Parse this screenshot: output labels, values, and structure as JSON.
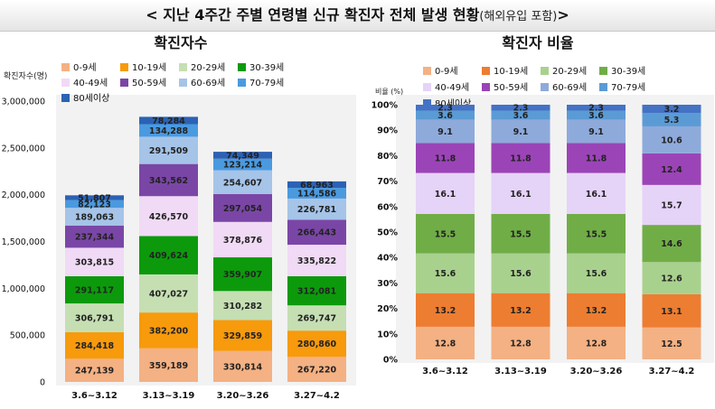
{
  "page": {
    "title": "< 지난 4주간 주별 연령별 신규 확진자 전체 발생 현황",
    "title_suffix": "(해외유입 포함)",
    "title_close": ">"
  },
  "legend_labels": [
    "0-9세",
    "10-19세",
    "20-29세",
    "30-39세",
    "40-49세",
    "50-59세",
    "60-69세",
    "70-79세",
    "80세이상"
  ],
  "colors": {
    "left": [
      "#f4b183",
      "#f79a0c",
      "#c5dfb3",
      "#0c9a0c",
      "#f0daf5",
      "#7a46a6",
      "#a5c4e8",
      "#4a9ae0",
      "#2c62b4"
    ],
    "right": [
      "#f4b183",
      "#ed7d31",
      "#a9d18e",
      "#70ad47",
      "#e6d3f8",
      "#9b44b7",
      "#8eaadb",
      "#5b9bd5",
      "#4472c4"
    ]
  },
  "chart_data": [
    {
      "type": "bar",
      "stacked": true,
      "title": "확진자수",
      "ylabel": "확진자수(명)",
      "categories": [
        "3.6~3.12",
        "3.13~3.19",
        "3.20~3.26",
        "3.27~4.2"
      ],
      "ylim": [
        0,
        3000000
      ],
      "yticks": [
        "0",
        "500,000",
        "1,000,000",
        "1,500,000",
        "2,000,000",
        "2,500,000",
        "3,000,000"
      ],
      "ytick_values": [
        0,
        500000,
        1000000,
        1500000,
        2000000,
        2500000,
        3000000
      ],
      "legend_placement": "top",
      "grid": false,
      "series": [
        {
          "name": "0-9세",
          "values": [
            247139,
            359189,
            330814,
            267220
          ],
          "labels": [
            "247,139",
            "359,189",
            "330,814",
            "267,220"
          ]
        },
        {
          "name": "10-19세",
          "values": [
            284418,
            382200,
            329859,
            280860
          ],
          "labels": [
            "284,418",
            "382,200",
            "329,859",
            "280,860"
          ]
        },
        {
          "name": "20-29세",
          "values": [
            306791,
            407027,
            310282,
            269747
          ],
          "labels": [
            "306,791",
            "407,027",
            "310,282",
            "269,747"
          ]
        },
        {
          "name": "30-39세",
          "values": [
            291117,
            409624,
            359907,
            312081
          ],
          "labels": [
            "291,117",
            "409,624",
            "359,907",
            "312,081"
          ]
        },
        {
          "name": "40-49세",
          "values": [
            303815,
            426570,
            378876,
            335822
          ],
          "labels": [
            "303,815",
            "426,570",
            "378,876",
            "335,822"
          ]
        },
        {
          "name": "50-59세",
          "values": [
            237344,
            343562,
            297054,
            266443
          ],
          "labels": [
            "237,344",
            "343,562",
            "297,054",
            "266,443"
          ]
        },
        {
          "name": "60-69세",
          "values": [
            189063,
            291509,
            254607,
            226781
          ],
          "labels": [
            "189,063",
            "291,509",
            "254,607",
            "226,781"
          ]
        },
        {
          "name": "70-79세",
          "values": [
            82123,
            134288,
            123214,
            114586
          ],
          "labels": [
            "82,123",
            "134,288",
            "123,214",
            "114,586"
          ]
        },
        {
          "name": "80세이상",
          "values": [
            51807,
            78284,
            74349,
            68963
          ],
          "labels": [
            "51,807",
            "78,284",
            "74,349",
            "68,963"
          ]
        }
      ]
    },
    {
      "type": "bar",
      "stacked": true,
      "percent": true,
      "title": "확진자 비율",
      "ylabel": "비율 (%)",
      "categories": [
        "3.6~3.12",
        "3.13~3.19",
        "3.20~3.26",
        "3.27~4.2"
      ],
      "ylim": [
        0,
        100
      ],
      "yticks": [
        "0%",
        "10%",
        "20%",
        "30%",
        "40%",
        "50%",
        "60%",
        "70%",
        "80%",
        "90%",
        "100%"
      ],
      "ytick_values": [
        0,
        10,
        20,
        30,
        40,
        50,
        60,
        70,
        80,
        90,
        100
      ],
      "legend_placement": "top",
      "grid": false,
      "series": [
        {
          "name": "0-9세",
          "values": [
            12.8,
            12.8,
            12.8,
            12.5
          ]
        },
        {
          "name": "10-19세",
          "values": [
            13.2,
            13.2,
            13.2,
            13.1
          ]
        },
        {
          "name": "20-29세",
          "values": [
            15.6,
            15.6,
            15.6,
            12.6
          ]
        },
        {
          "name": "30-39세",
          "values": [
            15.5,
            15.5,
            15.5,
            14.6
          ]
        },
        {
          "name": "40-49세",
          "values": [
            16.1,
            16.1,
            16.1,
            15.7
          ]
        },
        {
          "name": "50-59세",
          "values": [
            11.8,
            11.8,
            11.8,
            12.4
          ]
        },
        {
          "name": "60-69세",
          "values": [
            9.1,
            9.1,
            9.1,
            10.6
          ]
        },
        {
          "name": "70-79세",
          "values": [
            3.6,
            3.6,
            3.6,
            5.3
          ]
        },
        {
          "name": "80세이상",
          "values": [
            2.3,
            2.3,
            2.3,
            3.2
          ]
        }
      ]
    }
  ]
}
